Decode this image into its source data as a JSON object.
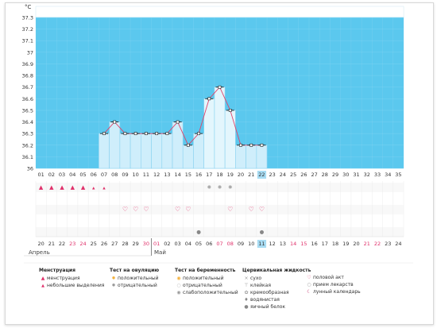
{
  "chart_data": {
    "type": "line",
    "ylabel": "°C",
    "ylim": [
      36,
      37.3
    ],
    "y_ticks": [
      "37.3",
      "37.2",
      "37.1",
      "37",
      "36.9",
      "36.8",
      "36.7",
      "36.6",
      "36.5",
      "36.4",
      "36.3",
      "36.2",
      "36.1",
      "36"
    ],
    "cycle_days": [
      "01",
      "02",
      "03",
      "04",
      "05",
      "06",
      "07",
      "08",
      "09",
      "10",
      "11",
      "12",
      "13",
      "14",
      "15",
      "16",
      "17",
      "18",
      "19",
      "20",
      "21",
      "22",
      "23",
      "24",
      "25",
      "26",
      "27",
      "28",
      "29",
      "30",
      "31",
      "32",
      "33",
      "34",
      "35"
    ],
    "today_day": "22",
    "temperatures": [
      {
        "day": 7,
        "temp": 36.3
      },
      {
        "day": 8,
        "temp": 36.4
      },
      {
        "day": 9,
        "temp": 36.3
      },
      {
        "day": 10,
        "temp": 36.3
      },
      {
        "day": 11,
        "temp": 36.3
      },
      {
        "day": 12,
        "temp": 36.3
      },
      {
        "day": 13,
        "temp": 36.3
      },
      {
        "day": 14,
        "temp": 36.4
      },
      {
        "day": 15,
        "temp": 36.2
      },
      {
        "day": 16,
        "temp": 36.3
      },
      {
        "day": 17,
        "temp": 36.6
      },
      {
        "day": 18,
        "temp": 36.7
      },
      {
        "day": 19,
        "temp": 36.5
      },
      {
        "day": 20,
        "temp": 36.2
      },
      {
        "day": 21,
        "temp": 36.2
      },
      {
        "day": 22,
        "temp": 36.2
      }
    ],
    "highlighted_days": [
      17,
      18,
      19
    ],
    "menstruation_days": [
      1,
      2,
      3,
      4,
      5
    ],
    "spotting_days": [
      6,
      7
    ],
    "ovulation_negative_days": [
      17,
      18,
      19
    ],
    "intercourse_days": [
      9,
      10,
      11,
      14,
      15,
      19,
      21,
      22
    ],
    "fluid_egg_white_days": [
      16,
      22
    ]
  },
  "calendar": {
    "dates": [
      {
        "d": "20",
        "red": false
      },
      {
        "d": "21",
        "red": false
      },
      {
        "d": "22",
        "red": false
      },
      {
        "d": "23",
        "red": true
      },
      {
        "d": "24",
        "red": true
      },
      {
        "d": "25",
        "red": false
      },
      {
        "d": "26",
        "red": false
      },
      {
        "d": "27",
        "red": false
      },
      {
        "d": "28",
        "red": false
      },
      {
        "d": "29",
        "red": false
      },
      {
        "d": "30",
        "red": true
      },
      {
        "d": "01",
        "red": true
      },
      {
        "d": "02",
        "red": false
      },
      {
        "d": "03",
        "red": false
      },
      {
        "d": "04",
        "red": false
      },
      {
        "d": "05",
        "red": false
      },
      {
        "d": "06",
        "red": false
      },
      {
        "d": "07",
        "red": true
      },
      {
        "d": "08",
        "red": true
      },
      {
        "d": "09",
        "red": false
      },
      {
        "d": "10",
        "red": false
      },
      {
        "d": "11",
        "red": false
      },
      {
        "d": "12",
        "red": false
      },
      {
        "d": "13",
        "red": false
      },
      {
        "d": "14",
        "red": true
      },
      {
        "d": "15",
        "red": true
      },
      {
        "d": "16",
        "red": false
      },
      {
        "d": "17",
        "red": false
      },
      {
        "d": "18",
        "red": false
      },
      {
        "d": "19",
        "red": false
      },
      {
        "d": "20",
        "red": false
      },
      {
        "d": "21",
        "red": true
      },
      {
        "d": "22",
        "red": true
      },
      {
        "d": "23",
        "red": false
      },
      {
        "d": "24",
        "red": false
      }
    ],
    "month_april": "Апрель",
    "month_may": "Май"
  },
  "legend": {
    "menstruation": {
      "title": "Менструация",
      "items": [
        "менструация",
        "небольшие выделения"
      ]
    },
    "ovulation": {
      "title": "Тест на овуляцию",
      "items": [
        "положительный",
        "отрицательный"
      ]
    },
    "pregnancy": {
      "title": "Тест на беременность",
      "items": [
        "положительный",
        "отрицательный",
        "слабоположительный"
      ]
    },
    "cervical": {
      "title": "Цервикальная жидкость",
      "items": [
        "сухо",
        "клейкая",
        "кремообразная",
        "водянистая",
        "яичный белок"
      ]
    },
    "other": {
      "items": [
        "половой акт",
        "прием лекарств",
        "лунный календарь"
      ]
    }
  },
  "colors": {
    "sky": "#5bc8ee",
    "bar": "#cfeefb",
    "bar_border": "#8fd3f0",
    "line": "#e0446a",
    "grid": "#b8e4f5",
    "today": "#a8dcf3",
    "red": "#e0306a"
  }
}
